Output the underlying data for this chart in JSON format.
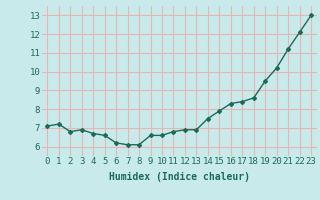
{
  "x": [
    0,
    1,
    2,
    3,
    4,
    5,
    6,
    7,
    8,
    9,
    10,
    11,
    12,
    13,
    14,
    15,
    16,
    17,
    18,
    19,
    20,
    21,
    22,
    23
  ],
  "y": [
    7.1,
    7.2,
    6.8,
    6.9,
    6.7,
    6.6,
    6.2,
    6.1,
    6.1,
    6.6,
    6.6,
    6.8,
    6.9,
    6.9,
    7.5,
    7.9,
    8.3,
    8.4,
    8.6,
    9.5,
    10.2,
    11.2,
    12.1,
    13.0
  ],
  "xlabel": "Humidex (Indice chaleur)",
  "ylim": [
    5.5,
    13.5
  ],
  "xlim": [
    -0.5,
    23.5
  ],
  "yticks": [
    6,
    7,
    8,
    9,
    10,
    11,
    12,
    13
  ],
  "xticks": [
    0,
    1,
    2,
    3,
    4,
    5,
    6,
    7,
    8,
    9,
    10,
    11,
    12,
    13,
    14,
    15,
    16,
    17,
    18,
    19,
    20,
    21,
    22,
    23
  ],
  "line_color": "#1a6b5a",
  "bg_color": "#c8eaea",
  "grid_color": "#e8b4b4",
  "marker": "D",
  "marker_size": 2.0,
  "line_width": 1.0,
  "xlabel_fontsize": 7,
  "tick_fontsize": 6.5,
  "title_fontsize": 9
}
